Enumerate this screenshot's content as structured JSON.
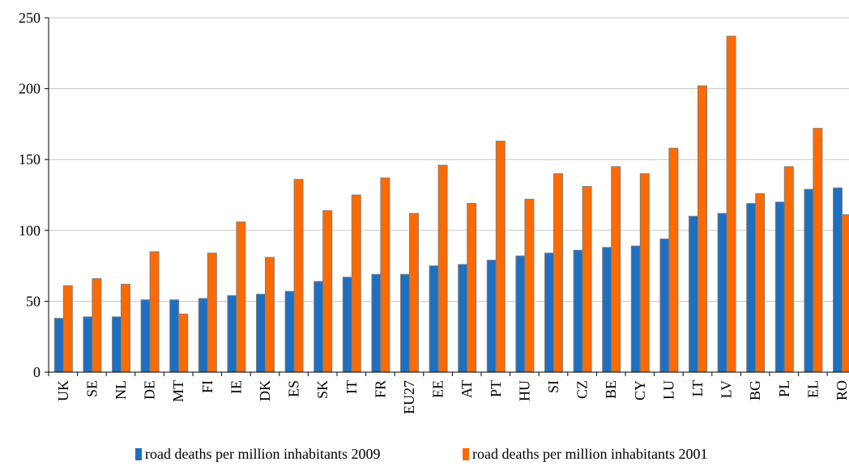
{
  "chart_data": {
    "type": "bar",
    "title": "",
    "xlabel": "",
    "ylabel": "",
    "ylim": [
      0,
      250
    ],
    "yticks": [
      0,
      50,
      100,
      150,
      200,
      250
    ],
    "grid": true,
    "legend_position": "bottom",
    "categories": [
      "UK",
      "SE",
      "NL",
      "DE",
      "MT",
      "FI",
      "IE",
      "DK",
      "ES",
      "SK",
      "IT",
      "FR",
      "EU27",
      "EE",
      "AT",
      "PT",
      "HU",
      "SI",
      "CZ",
      "BE",
      "CY",
      "LU",
      "LT",
      "LV",
      "BG",
      "PL",
      "EL",
      "RO"
    ],
    "series": [
      {
        "name": "road deaths per million inhabitants 2009",
        "color": "#1f6fc0",
        "values": [
          38,
          39,
          39,
          51,
          51,
          52,
          54,
          55,
          57,
          64,
          67,
          69,
          69,
          75,
          76,
          79,
          82,
          84,
          86,
          88,
          89,
          94,
          110,
          112,
          119,
          120,
          129,
          130
        ]
      },
      {
        "name": "road deaths per million inhabitants 2001",
        "color": "#ff6a00",
        "values": [
          61,
          66,
          62,
          85,
          41,
          84,
          106,
          81,
          136,
          114,
          125,
          137,
          112,
          146,
          119,
          163,
          122,
          140,
          131,
          145,
          140,
          158,
          202,
          237,
          126,
          145,
          172,
          111
        ]
      }
    ]
  }
}
